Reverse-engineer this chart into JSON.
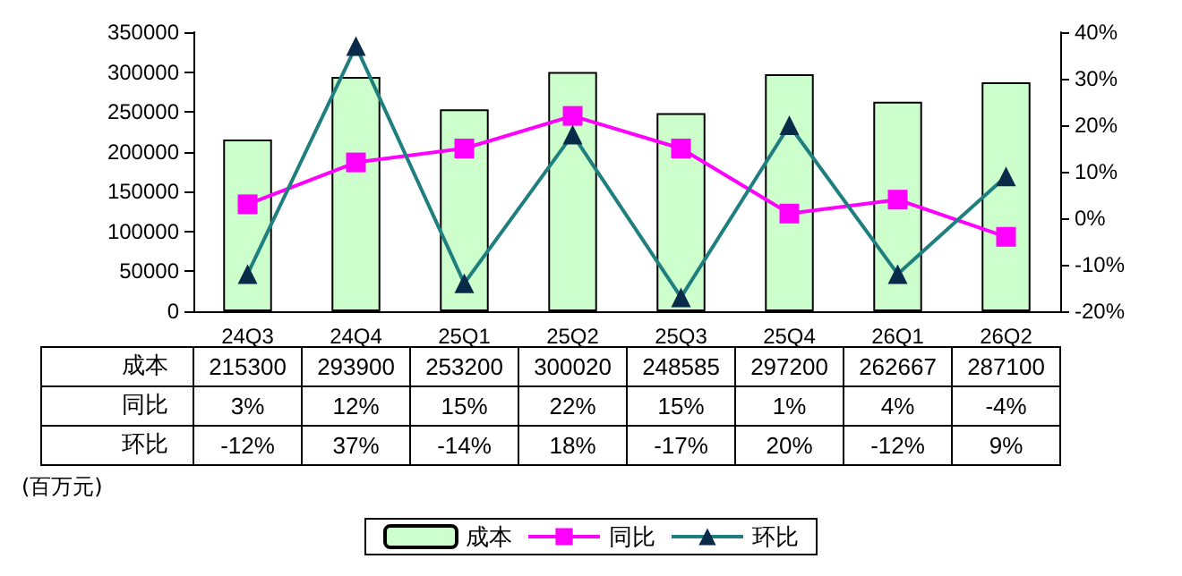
{
  "chart_data": {
    "type": "bar",
    "categories": [
      "24Q3",
      "24Q4",
      "25Q1",
      "25Q2",
      "25Q3",
      "25Q4",
      "26Q1",
      "26Q2"
    ],
    "series": [
      {
        "name": "成本",
        "type": "bar",
        "color": "#ccffcc",
        "values": [
          215300,
          293900,
          253200,
          300020,
          248585,
          297200,
          262667,
          287100
        ],
        "value_labels": [
          "215300",
          "293900",
          "253200",
          "300020",
          "248585",
          "297200",
          "262667",
          "287100"
        ]
      },
      {
        "name": "同比",
        "type": "line",
        "axis": "y2",
        "color": "#ff00ff",
        "marker": "square",
        "values": [
          3,
          12,
          15,
          22,
          15,
          1,
          4,
          -4
        ],
        "value_labels": [
          "3%",
          "12%",
          "15%",
          "22%",
          "15%",
          "1%",
          "4%",
          "-4%"
        ]
      },
      {
        "name": "环比",
        "type": "line",
        "axis": "y2",
        "color": "#1f7f7f",
        "marker": "triangle",
        "values": [
          -12,
          37,
          -14,
          18,
          -17,
          20,
          -12,
          9
        ],
        "value_labels": [
          "-12%",
          "37%",
          "-14%",
          "18%",
          "-17%",
          "20%",
          "-12%",
          "9%"
        ]
      }
    ],
    "ylim": [
      0,
      350000
    ],
    "yticks": [
      0,
      50000,
      100000,
      150000,
      200000,
      250000,
      300000,
      350000
    ],
    "y2lim": [
      -20,
      40
    ],
    "y2ticks": [
      {
        "value": -20,
        "label": "-20%"
      },
      {
        "value": -10,
        "label": "-10%"
      },
      {
        "value": 0,
        "label": "0%"
      },
      {
        "value": 10,
        "label": "10%"
      },
      {
        "value": 20,
        "label": "20%"
      },
      {
        "value": 30,
        "label": "30%"
      },
      {
        "value": 40,
        "label": "40%"
      }
    ],
    "grid": false,
    "legend": "bottom",
    "annotations": [
      "(百万元)"
    ]
  }
}
